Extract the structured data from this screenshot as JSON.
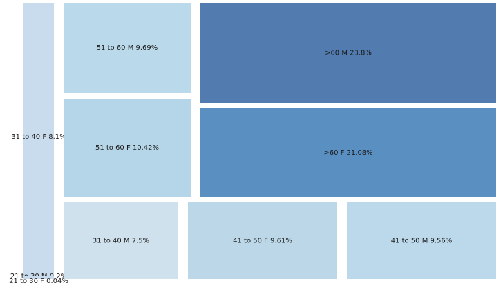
{
  "chart_data": {
    "type": "treemap",
    "items": [
      {
        "name": "31 to 40 F",
        "value": 8.1,
        "label": "31 to 40 F 8.1%",
        "color": "#c9dcee"
      },
      {
        "name": "21 to 30 M",
        "value": 0.2,
        "label": "21 to 30 M 0.2%",
        "color": "#c9dcee"
      },
      {
        "name": "21 to 30 F",
        "value": 0.04,
        "label": "21 to 30 F 0.04%",
        "color": "#c9dcee"
      },
      {
        "name": "51 to 60 M",
        "value": 9.69,
        "label": "51 to 60 M 9.69%",
        "color": "#bad9ea"
      },
      {
        "name": ">60 M",
        "value": 23.8,
        "label": ">60 M 23.8%",
        "color": "#527caf"
      },
      {
        "name": "51 to 60 F",
        "value": 10.42,
        "label": "51 to 60 F 10.42%",
        "color": "#b5d6e8"
      },
      {
        "name": ">60 F",
        "value": 21.08,
        "label": ">60 F 21.08%",
        "color": "#5a8fc2"
      },
      {
        "name": "31 to 40 M",
        "value": 7.5,
        "label": "31 to 40 M 7.5%",
        "color": "#d0e1ee"
      },
      {
        "name": "41 to 50 F",
        "value": 9.61,
        "label": "41 to 50 F 9.61%",
        "color": "#bcd8e8"
      },
      {
        "name": "41 to 50 M",
        "value": 9.56,
        "label": "41 to 50 M 9.56%",
        "color": "#bcd9eb"
      }
    ]
  }
}
